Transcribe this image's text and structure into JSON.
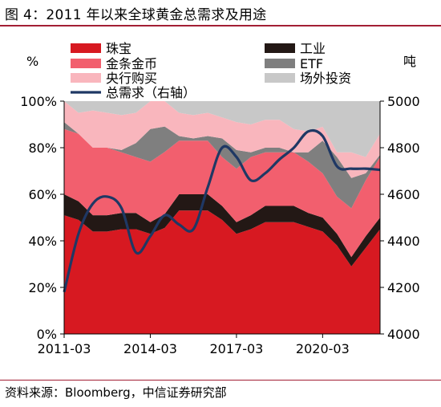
{
  "title": "图 4：2011 年以来全球黄金总需求及用途",
  "source": "资料来源：Bloomberg，中信证券研究部",
  "chart_data": {
    "type": "area",
    "left_unit": "%",
    "right_unit": "吨",
    "x": [
      2011.0,
      2011.5,
      2012.0,
      2012.5,
      2013.0,
      2013.5,
      2014.0,
      2014.5,
      2015.0,
      2015.5,
      2016.0,
      2016.5,
      2017.0,
      2017.5,
      2018.0,
      2018.5,
      2019.0,
      2019.5,
      2020.0,
      2020.5,
      2021.0,
      2021.5,
      2022.0
    ],
    "x_tick_values": [
      2011.0,
      2014.0,
      2017.0,
      2020.0
    ],
    "x_tick_labels": [
      "2011-03",
      "2014-03",
      "2017-03",
      "2020-03"
    ],
    "y_left_ticks": [
      "0%",
      "20%",
      "40%",
      "60%",
      "80%",
      "100%"
    ],
    "y_right_ticks": [
      "4000",
      "4200",
      "4400",
      "4600",
      "4800",
      "5000"
    ],
    "ylim_left": [
      0,
      100
    ],
    "ylim_right": [
      4000,
      5000
    ],
    "stack_series": [
      {
        "name": "珠宝",
        "color": "#d71921",
        "values": [
          51,
          49,
          44,
          44,
          45,
          45,
          43,
          46,
          53,
          53,
          53,
          49,
          43,
          45,
          48,
          48,
          48,
          46,
          44,
          38,
          29,
          37,
          45
        ]
      },
      {
        "name": "工业",
        "color": "#231815",
        "values": [
          9,
          8,
          7,
          7,
          7,
          7,
          5,
          6,
          7,
          7,
          7,
          6,
          5,
          6,
          7,
          7,
          7,
          6,
          6,
          5,
          4,
          5,
          5
        ]
      },
      {
        "name": "金条金币",
        "color": "#f25f6e",
        "values": [
          28,
          29,
          29,
          29,
          26,
          24,
          26,
          27,
          23,
          23,
          23,
          21,
          23,
          25,
          23,
          23,
          23,
          22,
          19,
          16,
          21,
          24,
          26
        ]
      },
      {
        "name": "ETF",
        "color": "#7f7f7f",
        "values": [
          3,
          0,
          0,
          0,
          1,
          6,
          14,
          11,
          2,
          1,
          2,
          8,
          8,
          2,
          2,
          2,
          0,
          4,
          14,
          17,
          13,
          3,
          1
        ]
      },
      {
        "name": "央行购买",
        "color": "#f9b6bd",
        "values": [
          9,
          9,
          16,
          15,
          15,
          13,
          12,
          11,
          10,
          10,
          10,
          9,
          12,
          12,
          12,
          12,
          10,
          9,
          6,
          2,
          11,
          7,
          9
        ]
      },
      {
        "name": "场外投资",
        "color": "#c8c8c8",
        "values": [
          0,
          5,
          4,
          5,
          6,
          5,
          0,
          0,
          5,
          6,
          5,
          7,
          9,
          10,
          8,
          8,
          12,
          13,
          11,
          22,
          22,
          24,
          14
        ]
      }
    ],
    "line_series": {
      "name": "总需求（右轴）",
      "color": "#1f3864",
      "axis": "right",
      "values": [
        4180,
        4430,
        4560,
        4590,
        4540,
        4350,
        4420,
        4510,
        4470,
        4450,
        4630,
        4800,
        4760,
        4660,
        4690,
        4750,
        4800,
        4870,
        4850,
        4720,
        4710,
        4710,
        4705
      ]
    },
    "legend_order": [
      "珠宝",
      "工业",
      "金条金币",
      "ETF",
      "央行购买",
      "场外投资",
      "总需求（右轴）"
    ]
  }
}
